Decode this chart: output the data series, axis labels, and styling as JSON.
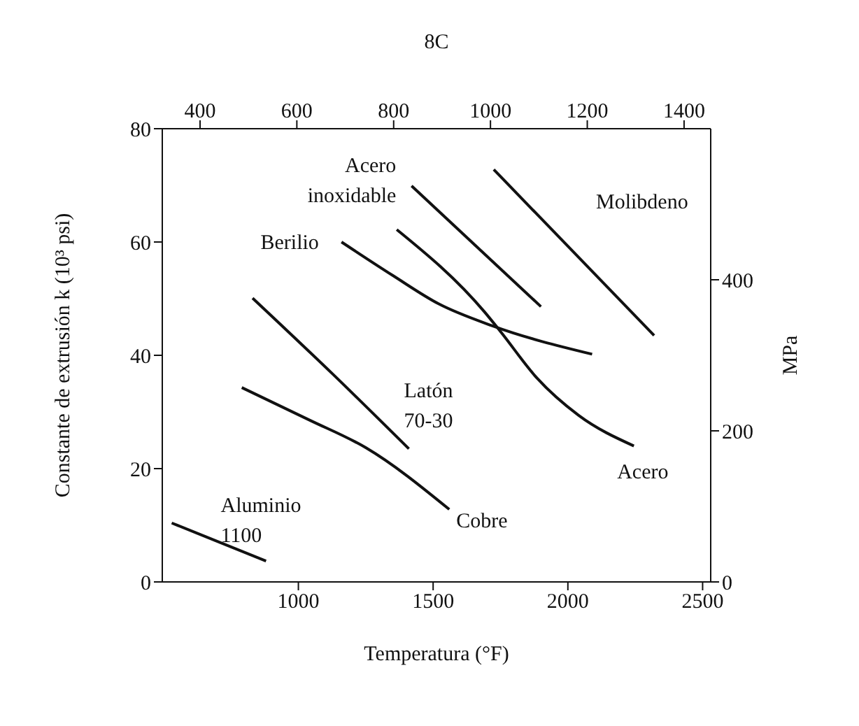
{
  "chart_data": {
    "type": "line",
    "xlabel": "Temperatura (°F)",
    "ylabel": "Constante de extrusión k (10³ psi)",
    "y2label": "MPa",
    "x2label": "8C",
    "xlim": [
      495,
      2530
    ],
    "xticks": [
      1000,
      1500,
      2000,
      2500
    ],
    "ylim": [
      0,
      80
    ],
    "yticks": [
      0,
      20,
      40,
      60,
      80
    ],
    "x2lim": [
      322,
      1455
    ],
    "x2ticks": [
      400,
      600,
      800,
      1000,
      1200,
      1400
    ],
    "y2lim": [
      0,
      600
    ],
    "y2ticks": [
      0,
      200,
      400
    ],
    "marker": "none",
    "line_style": "solid",
    "series": [
      {
        "name": "Aluminio 1100",
        "color": "#111111",
        "x": [
          530,
          880
        ],
        "values": [
          10.4,
          3.7
        ]
      },
      {
        "name": "Cobre",
        "color": "#111111",
        "x": [
          790,
          1040,
          1250,
          1560
        ],
        "values": [
          34.3,
          28.6,
          23.7,
          12.8
        ]
      },
      {
        "name": "Latón 70-30",
        "color": "#111111",
        "x": [
          830,
          1125,
          1410
        ],
        "values": [
          50.1,
          36.8,
          23.5
        ]
      },
      {
        "name": "Berilio",
        "color": "#111111",
        "x": [
          1160,
          1350,
          1520,
          1720,
          2090
        ],
        "values": [
          60,
          54.1,
          49.1,
          45.2,
          40.2
        ]
      },
      {
        "name": "Acero",
        "color": "#111111",
        "x": [
          1365,
          1690,
          1750,
          1885,
          2040,
          2245
        ],
        "values": [
          62.2,
          47.7,
          44.2,
          36,
          29.4,
          24
        ]
      },
      {
        "name": "Acero inoxidable",
        "color": "#111111",
        "x": [
          1420,
          1900
        ],
        "values": [
          69.9,
          48.6
        ]
      },
      {
        "name": "Molibdeno",
        "color": "#111111",
        "x": [
          1725,
          2320
        ],
        "values": [
          72.8,
          43.5
        ]
      }
    ]
  }
}
